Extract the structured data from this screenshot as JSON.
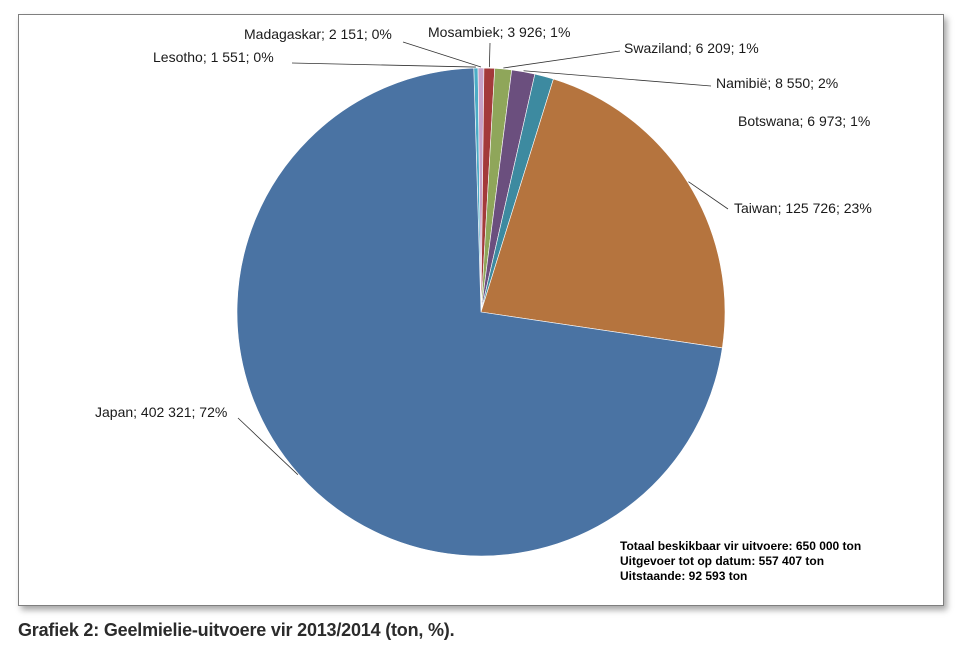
{
  "chart_data": {
    "type": "pie",
    "categories": [
      "Japan",
      "Lesotho",
      "Madagaskar",
      "Mosambiek",
      "Swaziland",
      "Namibië",
      "Botswana",
      "Taiwan"
    ],
    "values": [
      402321,
      1551,
      2151,
      3926,
      6209,
      8550,
      6973,
      125726
    ],
    "labels": [
      "Japan; 402 321; 72%",
      "Lesotho; 1 551; 0%",
      "Madagaskar; 2 151; 0%",
      "Mosambiek; 3 926; 1%",
      "Swaziland; 6 209; 1%",
      "Namibië; 8 550; 2%",
      "Botswana; 6 973; 1%",
      "Taiwan; 125 726; 23%"
    ],
    "colors": [
      "#4a73a3",
      "#4bacc6",
      "#c8a2c8",
      "#a33a3a",
      "#8fa65a",
      "#6b4f7e",
      "#3d8aa0",
      "#b5743e"
    ],
    "legend": "none"
  },
  "summary": {
    "line1": "Totaal beskikbaar vir uitvoere: 650 000 ton",
    "line2": "Uitgevoer tot op datum: 557 407 ton",
    "line3": "Uitstaande: 92 593 ton"
  },
  "caption": "Grafiek 2: Geelmielie-uitvoere vir 2013/2014 (ton, %)."
}
